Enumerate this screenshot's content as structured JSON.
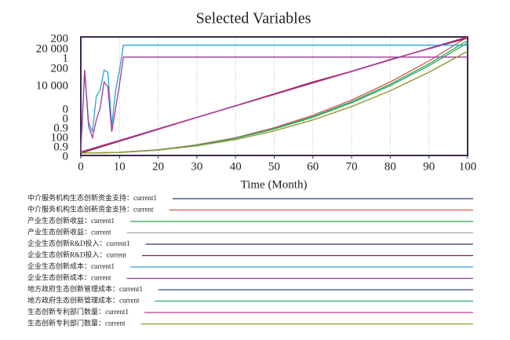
{
  "chart_data": {
    "type": "line",
    "title": "Selected Variables",
    "xlabel": "Time (Month)",
    "xlim": [
      0,
      100
    ],
    "xticks": [
      0,
      10,
      20,
      30,
      40,
      50,
      60,
      70,
      80,
      90,
      100
    ],
    "grid": true,
    "yaxes": [
      {
        "ylim": [
          0,
          200
        ],
        "yticks": [
          0,
          200
        ]
      },
      {
        "ylim": [
          0,
          20000
        ],
        "yticks": [
          0,
          {
            "value": 20000,
            "label": "20 000"
          }
        ]
      },
      {
        "ylim": [
          0.9,
          1
        ],
        "yticks": [
          0.9,
          1
        ]
      },
      {
        "ylim": [
          100,
          200
        ],
        "yticks": [
          100,
          200
        ]
      },
      {
        "ylim": [
          0.9,
          10000
        ],
        "yticks": [
          0.9,
          {
            "value": 10000,
            "label": "10 000"
          }
        ]
      },
      {
        "ylim": [
          0,
          1
        ],
        "yticks": [
          0
        ]
      }
    ],
    "series": [
      {
        "name": "中介服务机构生态创新资金支持：current1",
        "color": "#2b3a6b",
        "axis": 0,
        "x": [
          0,
          10,
          20,
          30,
          40,
          50,
          60,
          70,
          80,
          90,
          100
        ],
        "values": [
          6,
          25.4,
          44.8,
          64.2,
          83.6,
          103,
          122.4,
          141.8,
          161.2,
          180.6,
          200
        ]
      },
      {
        "name": "中介服务机构生态创新资金支持：current",
        "color": "#d9534f",
        "axis": 0,
        "x": [
          0,
          10,
          20,
          30,
          40,
          50,
          60,
          70,
          80,
          90,
          100
        ],
        "values": [
          4,
          5.2,
          9.6,
          18,
          30,
          46.8,
          67.8,
          93.4,
          124,
          159.4,
          200
        ]
      },
      {
        "name": "产业生态创新收益：current1",
        "color": "#2ea84a",
        "axis": 1,
        "x": [
          0,
          10,
          20,
          30,
          40,
          50,
          60,
          70,
          80,
          90,
          100
        ],
        "values": [
          400,
          520,
          940,
          1720,
          2880,
          4460,
          6440,
          8880,
          11780,
          15140,
          19000
        ]
      },
      {
        "name": "产业生态创新收益：current",
        "color": "#aaaaaa",
        "axis": 1,
        "x": [
          0,
          10,
          20,
          30,
          40,
          50,
          60,
          70,
          80,
          90,
          100
        ],
        "values": [
          400,
          500,
          900,
          1620,
          2680,
          4140,
          6000,
          8240,
          10920,
          14040,
          17600
        ]
      },
      {
        "name": "企业生态创新R&D投入：current1",
        "color": "#333355",
        "axis": 2,
        "x": [
          0,
          10,
          20,
          30,
          40,
          50,
          60,
          70,
          80,
          90,
          100
        ],
        "values": [
          0.903,
          0.9127,
          0.9224,
          0.9321,
          0.9418,
          0.9515,
          0.9612,
          0.9709,
          0.9806,
          0.9903,
          1
        ]
      },
      {
        "name": "企业生态创新R&D投入：current",
        "color": "#8b1a3a",
        "axis": 2,
        "x": [
          0,
          10,
          20,
          30,
          40,
          50,
          60,
          70,
          80,
          90,
          100
        ],
        "values": [
          0.902,
          0.912,
          0.922,
          0.932,
          0.942,
          0.952,
          0.962,
          0.971,
          0.981,
          0.99,
          0.999
        ]
      },
      {
        "name": "企业生态创新成本：current1",
        "color": "#29a3d6",
        "axis": 4,
        "x": [
          0,
          1,
          2,
          3,
          4,
          5,
          6,
          7,
          8,
          9,
          10,
          11,
          12,
          100
        ],
        "values": [
          500,
          7200,
          2800,
          2000,
          5000,
          5500,
          7200,
          7000,
          2500,
          5500,
          7200,
          9300,
          9300,
          9300
        ]
      },
      {
        "name": "企业生态创新成本：current",
        "color": "#a03a9c",
        "axis": 4,
        "x": [
          0,
          1,
          2,
          3,
          4,
          5,
          6,
          7,
          8,
          9,
          10,
          11,
          12,
          100
        ],
        "values": [
          300,
          7200,
          2500,
          1500,
          3000,
          4000,
          6200,
          5800,
          2000,
          4000,
          6000,
          8300,
          8300,
          8300
        ]
      },
      {
        "name": "地方政府生态创新管理成本：current1",
        "color": "#3a4a8a",
        "axis": 3,
        "x": [
          0,
          10,
          20,
          30,
          40,
          50,
          60,
          70,
          80,
          90,
          100
        ],
        "values": [
          103,
          112.7,
          122.4,
          132.1,
          141.8,
          151.5,
          161.2,
          170.9,
          180.6,
          190.3,
          200
        ]
      },
      {
        "name": "地方政府生态创新管理成本：current",
        "color": "#2aa86a",
        "axis": 3,
        "x": [
          0,
          10,
          20,
          30,
          40,
          50,
          60,
          70,
          80,
          90,
          100
        ],
        "values": [
          102,
          102.6,
          104.8,
          108.7,
          114.6,
          122.7,
          132.9,
          145.3,
          160.1,
          177.3,
          197
        ]
      },
      {
        "name": "生态创新专利部门数量：current1",
        "color": "#c0399f",
        "axis": 5,
        "x": [
          0,
          10,
          20,
          30,
          40,
          50,
          60,
          70,
          80,
          90,
          100
        ],
        "values": [
          0.03,
          0.127,
          0.224,
          0.321,
          0.418,
          0.515,
          0.612,
          0.709,
          0.806,
          0.903,
          1
        ]
      },
      {
        "name": "生态创新专利部门数量：current",
        "color": "#9a9a30",
        "axis": 5,
        "x": [
          0,
          10,
          20,
          30,
          40,
          50,
          60,
          70,
          80,
          90,
          100
        ],
        "values": [
          0.02,
          0.025,
          0.045,
          0.081,
          0.134,
          0.207,
          0.3,
          0.412,
          0.546,
          0.702,
          0.88
        ]
      }
    ]
  }
}
